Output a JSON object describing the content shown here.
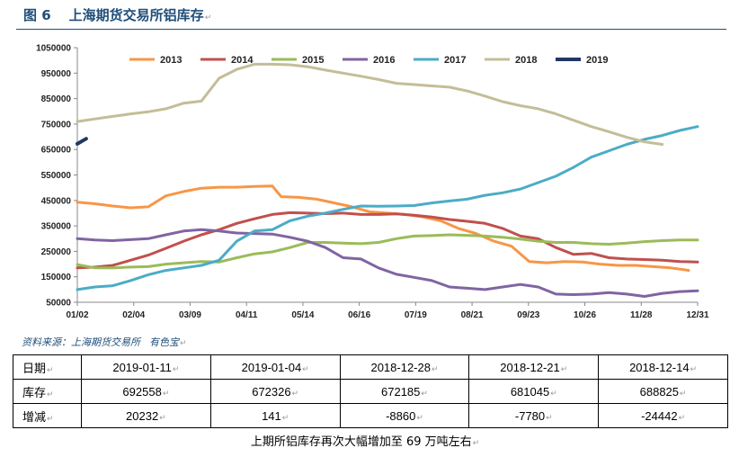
{
  "figure": {
    "number": "图 6",
    "title": "上海期货交易所铝库存"
  },
  "source": {
    "label": "资料来源：上海期货交易所",
    "org": "有色宝"
  },
  "table": {
    "rows": [
      {
        "label": "日期",
        "cells": [
          "2019-01-11",
          "2019-01-04",
          "2018-12-28",
          "2018-12-21",
          "2018-12-14"
        ]
      },
      {
        "label": "库存",
        "cells": [
          "692558",
          "672326",
          "672185",
          "681045",
          "688825"
        ]
      },
      {
        "label": "增减",
        "cells": [
          "20232",
          "141",
          "-8860",
          "-7780",
          "-24442"
        ]
      }
    ]
  },
  "caption": "上期所铝库存再次大幅增加至 69 万吨左右",
  "chart_data": {
    "type": "line",
    "title": "",
    "xlabel": "",
    "ylabel": "",
    "ylim": [
      50000,
      1050000
    ],
    "yticks": [
      50000,
      150000,
      250000,
      350000,
      450000,
      550000,
      650000,
      750000,
      850000,
      950000,
      1050000
    ],
    "xticks": [
      "01/02",
      "02/04",
      "03/09",
      "04/11",
      "05/14",
      "06/16",
      "07/19",
      "08/21",
      "09/23",
      "10/26",
      "11/28",
      "12/31"
    ],
    "grid": false,
    "legend": "top",
    "x_unit": "week of year (1-53)",
    "series": [
      {
        "name": "2013",
        "color": "#f79646",
        "points": [
          [
            1,
            443000
          ],
          [
            3,
            437000
          ],
          [
            5,
            428000
          ],
          [
            7,
            421000
          ],
          [
            9,
            425000
          ],
          [
            11,
            468000
          ],
          [
            13,
            485000
          ],
          [
            15,
            498000
          ],
          [
            17,
            502000
          ],
          [
            19,
            502000
          ],
          [
            21,
            505000
          ],
          [
            23,
            507000
          ],
          [
            24,
            465000
          ],
          [
            26,
            462000
          ],
          [
            28,
            455000
          ],
          [
            30,
            440000
          ],
          [
            32,
            425000
          ],
          [
            34,
            405000
          ],
          [
            36,
            400000
          ],
          [
            38,
            395000
          ],
          [
            40,
            385000
          ],
          [
            42,
            370000
          ],
          [
            44,
            340000
          ],
          [
            46,
            320000
          ],
          [
            48,
            290000
          ],
          [
            50,
            270000
          ],
          [
            52,
            210000
          ],
          [
            54,
            205000
          ],
          [
            56,
            210000
          ],
          [
            58,
            208000
          ],
          [
            60,
            200000
          ],
          [
            62,
            195000
          ],
          [
            64,
            195000
          ],
          [
            66,
            190000
          ],
          [
            68,
            185000
          ],
          [
            70,
            175000
          ]
        ]
      },
      {
        "name": "2014",
        "color": "#c0504d",
        "points": [
          [
            1,
            185000
          ],
          [
            3,
            188000
          ],
          [
            5,
            195000
          ],
          [
            7,
            215000
          ],
          [
            9,
            235000
          ],
          [
            11,
            262000
          ],
          [
            13,
            290000
          ],
          [
            15,
            315000
          ],
          [
            17,
            335000
          ],
          [
            19,
            360000
          ],
          [
            21,
            378000
          ],
          [
            23,
            395000
          ],
          [
            25,
            402000
          ],
          [
            27,
            400000
          ],
          [
            29,
            398000
          ],
          [
            31,
            400000
          ],
          [
            33,
            395000
          ],
          [
            35,
            395000
          ],
          [
            37,
            397000
          ],
          [
            39,
            392000
          ],
          [
            41,
            385000
          ],
          [
            43,
            375000
          ],
          [
            45,
            368000
          ],
          [
            47,
            360000
          ],
          [
            49,
            340000
          ],
          [
            51,
            310000
          ],
          [
            53,
            300000
          ],
          [
            55,
            265000
          ],
          [
            57,
            238000
          ],
          [
            59,
            242000
          ],
          [
            61,
            225000
          ],
          [
            63,
            220000
          ],
          [
            65,
            218000
          ],
          [
            67,
            215000
          ],
          [
            69,
            210000
          ],
          [
            71,
            208000
          ]
        ]
      },
      {
        "name": "2015",
        "color": "#9bbb59",
        "points": [
          [
            1,
            198000
          ],
          [
            3,
            185000
          ],
          [
            5,
            185000
          ],
          [
            7,
            188000
          ],
          [
            9,
            190000
          ],
          [
            11,
            200000
          ],
          [
            13,
            205000
          ],
          [
            15,
            210000
          ],
          [
            17,
            208000
          ],
          [
            19,
            225000
          ],
          [
            21,
            240000
          ],
          [
            23,
            248000
          ],
          [
            25,
            265000
          ],
          [
            27,
            285000
          ],
          [
            29,
            285000
          ],
          [
            31,
            282000
          ],
          [
            33,
            280000
          ],
          [
            35,
            285000
          ],
          [
            37,
            300000
          ],
          [
            39,
            310000
          ],
          [
            41,
            312000
          ],
          [
            43,
            315000
          ],
          [
            45,
            313000
          ],
          [
            47,
            310000
          ],
          [
            49,
            305000
          ],
          [
            51,
            298000
          ],
          [
            53,
            290000
          ],
          [
            55,
            285000
          ],
          [
            57,
            285000
          ],
          [
            59,
            280000
          ],
          [
            61,
            278000
          ],
          [
            63,
            282000
          ],
          [
            65,
            288000
          ],
          [
            67,
            292000
          ],
          [
            69,
            295000
          ],
          [
            71,
            295000
          ]
        ]
      },
      {
        "name": "2016",
        "color": "#8064a2",
        "points": [
          [
            1,
            300000
          ],
          [
            3,
            295000
          ],
          [
            5,
            292000
          ],
          [
            7,
            296000
          ],
          [
            9,
            300000
          ],
          [
            11,
            315000
          ],
          [
            13,
            330000
          ],
          [
            15,
            335000
          ],
          [
            17,
            330000
          ],
          [
            19,
            322000
          ],
          [
            21,
            320000
          ],
          [
            23,
            318000
          ],
          [
            25,
            305000
          ],
          [
            27,
            290000
          ],
          [
            29,
            265000
          ],
          [
            31,
            225000
          ],
          [
            33,
            220000
          ],
          [
            35,
            185000
          ],
          [
            37,
            160000
          ],
          [
            39,
            148000
          ],
          [
            41,
            135000
          ],
          [
            43,
            110000
          ],
          [
            45,
            105000
          ],
          [
            47,
            100000
          ],
          [
            49,
            110000
          ],
          [
            51,
            120000
          ],
          [
            53,
            110000
          ],
          [
            55,
            82000
          ],
          [
            57,
            80000
          ],
          [
            59,
            82000
          ],
          [
            61,
            88000
          ],
          [
            63,
            82000
          ],
          [
            65,
            73000
          ],
          [
            67,
            85000
          ],
          [
            69,
            92000
          ],
          [
            71,
            95000
          ]
        ]
      },
      {
        "name": "2017",
        "color": "#4bacc6",
        "points": [
          [
            1,
            100000
          ],
          [
            3,
            110000
          ],
          [
            5,
            115000
          ],
          [
            7,
            135000
          ],
          [
            9,
            158000
          ],
          [
            11,
            175000
          ],
          [
            13,
            185000
          ],
          [
            15,
            195000
          ],
          [
            17,
            215000
          ],
          [
            19,
            290000
          ],
          [
            21,
            330000
          ],
          [
            23,
            335000
          ],
          [
            25,
            370000
          ],
          [
            27,
            388000
          ],
          [
            29,
            400000
          ],
          [
            31,
            415000
          ],
          [
            33,
            428000
          ],
          [
            35,
            427000
          ],
          [
            37,
            428000
          ],
          [
            39,
            430000
          ],
          [
            41,
            440000
          ],
          [
            43,
            448000
          ],
          [
            45,
            455000
          ],
          [
            47,
            470000
          ],
          [
            49,
            480000
          ],
          [
            51,
            495000
          ],
          [
            53,
            520000
          ],
          [
            55,
            545000
          ],
          [
            57,
            580000
          ],
          [
            59,
            620000
          ],
          [
            61,
            645000
          ],
          [
            63,
            670000
          ],
          [
            65,
            690000
          ],
          [
            67,
            705000
          ],
          [
            69,
            725000
          ],
          [
            71,
            740000
          ]
        ]
      },
      {
        "name": "2018",
        "color": "#c4bd97",
        "points": [
          [
            1,
            760000
          ],
          [
            3,
            770000
          ],
          [
            5,
            780000
          ],
          [
            7,
            790000
          ],
          [
            9,
            798000
          ],
          [
            11,
            810000
          ],
          [
            13,
            832000
          ],
          [
            15,
            840000
          ],
          [
            17,
            930000
          ],
          [
            19,
            965000
          ],
          [
            21,
            985000
          ],
          [
            23,
            985000
          ],
          [
            25,
            983000
          ],
          [
            27,
            975000
          ],
          [
            29,
            962000
          ],
          [
            31,
            950000
          ],
          [
            33,
            938000
          ],
          [
            35,
            925000
          ],
          [
            37,
            910000
          ],
          [
            39,
            905000
          ],
          [
            41,
            900000
          ],
          [
            43,
            895000
          ],
          [
            45,
            880000
          ],
          [
            47,
            860000
          ],
          [
            49,
            838000
          ],
          [
            51,
            822000
          ],
          [
            53,
            810000
          ],
          [
            55,
            790000
          ],
          [
            57,
            765000
          ],
          [
            59,
            740000
          ],
          [
            61,
            720000
          ],
          [
            63,
            698000
          ],
          [
            65,
            680000
          ],
          [
            67,
            670000
          ]
        ]
      },
      {
        "name": "2019",
        "color": "#1f3864",
        "points": [
          [
            1,
            672326
          ],
          [
            2,
            692558
          ]
        ]
      }
    ]
  }
}
